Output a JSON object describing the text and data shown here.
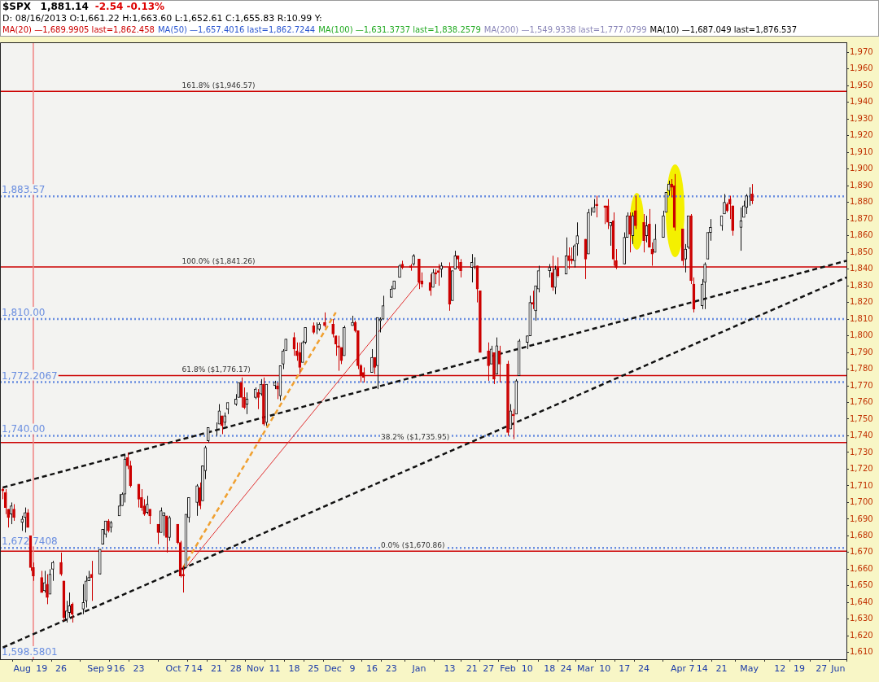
{
  "chart_data": {
    "type": "candlestick",
    "title": "$SPX",
    "subtitle": "D: 08/16/2013 O:1,661.22 H:1,663.60 L:1,652.61 C:1,655.83        R:10.99   Y:",
    "annotations": [
      "1,881.14",
      "-2.54  -0.13%",
      "MA(20) —1,689.9905 last=1,862.458",
      "MA(50) —1,657.4016 last=1,862.7244",
      "MA(100) —1,631.3737 last=1,838.2579",
      "MA(200) —1,549.9338 last=1,777.0799",
      "MA(10) —1,687.049 last=1,876.537",
      "1,598.5801"
    ],
    "x": [
      "2013-08-05",
      "2013-08-06",
      "2013-08-07",
      "2013-08-08",
      "2013-08-09",
      "2013-08-12",
      "2013-08-13",
      "2013-08-14",
      "2013-08-15",
      "2013-08-16",
      "2013-08-19",
      "2013-08-20",
      "2013-08-21",
      "2013-08-22",
      "2013-08-23",
      "2013-08-26",
      "2013-08-27",
      "2013-08-28",
      "2013-08-29",
      "2013-08-30",
      "2013-09-03",
      "2013-09-04",
      "2013-09-05",
      "2013-09-06",
      "2013-09-09",
      "2013-09-10",
      "2013-09-11",
      "2013-09-12",
      "2013-09-13",
      "2013-09-16",
      "2013-09-17",
      "2013-09-18",
      "2013-09-19",
      "2013-09-20",
      "2013-09-23",
      "2013-09-24",
      "2013-09-25",
      "2013-09-26",
      "2013-09-27",
      "2013-09-30",
      "2013-10-01",
      "2013-10-02",
      "2013-10-03",
      "2013-10-04",
      "2013-10-07",
      "2013-10-08",
      "2013-10-09",
      "2013-10-10",
      "2013-10-11",
      "2013-10-14",
      "2013-10-15",
      "2013-10-16",
      "2013-10-17",
      "2013-10-18",
      "2013-10-21",
      "2013-10-22",
      "2013-10-23",
      "2013-10-24",
      "2013-10-25",
      "2013-10-28",
      "2013-10-29",
      "2013-10-30",
      "2013-10-31",
      "2013-11-01",
      "2013-11-04",
      "2013-11-05",
      "2013-11-06",
      "2013-11-07",
      "2013-11-08",
      "2013-11-11",
      "2013-11-12",
      "2013-11-13",
      "2013-11-14",
      "2013-11-15",
      "2013-11-18",
      "2013-11-19",
      "2013-11-20",
      "2013-11-21",
      "2013-11-22",
      "2013-11-25",
      "2013-11-26",
      "2013-11-27",
      "2013-11-29",
      "2013-12-02",
      "2013-12-03",
      "2013-12-04",
      "2013-12-05",
      "2013-12-06",
      "2013-12-09",
      "2013-12-10",
      "2013-12-11",
      "2013-12-12",
      "2013-12-13",
      "2013-12-16",
      "2013-12-17",
      "2013-12-18",
      "2013-12-19",
      "2013-12-20",
      "2013-12-23",
      "2013-12-24",
      "2013-12-26",
      "2013-12-27",
      "2013-12-30",
      "2013-12-31",
      "2014-01-02",
      "2014-01-03",
      "2014-01-06",
      "2014-01-07",
      "2014-01-08",
      "2014-01-09",
      "2014-01-10",
      "2014-01-13",
      "2014-01-14",
      "2014-01-15",
      "2014-01-16",
      "2014-01-17",
      "2014-01-21",
      "2014-01-22",
      "2014-01-23",
      "2014-01-24",
      "2014-01-27",
      "2014-01-28",
      "2014-01-29",
      "2014-01-30",
      "2014-01-31",
      "2014-02-03",
      "2014-02-04",
      "2014-02-05",
      "2014-02-06",
      "2014-02-07",
      "2014-02-10",
      "2014-02-11",
      "2014-02-12",
      "2014-02-13",
      "2014-02-14",
      "2014-02-18",
      "2014-02-19",
      "2014-02-20",
      "2014-02-21",
      "2014-02-24",
      "2014-02-25",
      "2014-02-26",
      "2014-02-27",
      "2014-02-28",
      "2014-03-03",
      "2014-03-04",
      "2014-03-05",
      "2014-03-06",
      "2014-03-07",
      "2014-03-10",
      "2014-03-11",
      "2014-03-12",
      "2014-03-13",
      "2014-03-14",
      "2014-03-17",
      "2014-03-18",
      "2014-03-19",
      "2014-03-20",
      "2014-03-21",
      "2014-03-24",
      "2014-03-25",
      "2014-03-26",
      "2014-03-27",
      "2014-03-28",
      "2014-03-31",
      "2014-04-01",
      "2014-04-02",
      "2014-04-03",
      "2014-04-04",
      "2014-04-07",
      "2014-04-08",
      "2014-04-09",
      "2014-04-10",
      "2014-04-11",
      "2014-04-14",
      "2014-04-15",
      "2014-04-16",
      "2014-04-17",
      "2014-04-21",
      "2014-04-22",
      "2014-04-23",
      "2014-04-24",
      "2014-04-25",
      "2014-04-28",
      "2014-04-29",
      "2014-04-30",
      "2014-05-01",
      "2014-05-02"
    ],
    "ohlc": [
      [
        1708,
        1709,
        1702,
        1707
      ],
      [
        1706,
        1708,
        1693,
        1697
      ],
      [
        1696,
        1696,
        1685,
        1691
      ],
      [
        1693,
        1700,
        1687,
        1698
      ],
      [
        1696,
        1699,
        1689,
        1691
      ],
      [
        1688,
        1692,
        1683,
        1690
      ],
      [
        1691,
        1697,
        1682,
        1694
      ],
      [
        1694,
        1696,
        1685,
        1685
      ],
      [
        1680,
        1680,
        1659,
        1661
      ],
      [
        1661,
        1664,
        1653,
        1656
      ],
      [
        1655,
        1659,
        1646,
        1646
      ],
      [
        1647,
        1659,
        1646,
        1652
      ],
      [
        1651,
        1657,
        1639,
        1643
      ],
      [
        1645,
        1660,
        1645,
        1657
      ],
      [
        1660,
        1665,
        1653,
        1664
      ],
      [
        1664,
        1670,
        1656,
        1657
      ],
      [
        1653,
        1653,
        1629,
        1631
      ],
      [
        1630,
        1641,
        1628,
        1635
      ],
      [
        1634,
        1646,
        1631,
        1638
      ],
      [
        1639,
        1640,
        1628,
        1633
      ],
      [
        1636,
        1651,
        1633,
        1640
      ],
      [
        1641,
        1656,
        1637,
        1653
      ],
      [
        1653,
        1659,
        1653,
        1655
      ],
      [
        1657,
        1665,
        1641,
        1655
      ],
      [
        1657,
        1672,
        1657,
        1672
      ],
      [
        1675,
        1684,
        1675,
        1684
      ],
      [
        1681,
        1689,
        1679,
        1689
      ],
      [
        1689,
        1690,
        1682,
        1683
      ],
      [
        1685,
        1689,
        1682,
        1688
      ],
      [
        1692,
        1705,
        1692,
        1698
      ],
      [
        1698,
        1706,
        1698,
        1705
      ],
      [
        1705,
        1729,
        1700,
        1726
      ],
      [
        1727,
        1730,
        1720,
        1722
      ],
      [
        1722,
        1725,
        1709,
        1710
      ],
      [
        1711,
        1711,
        1697,
        1702
      ],
      [
        1703,
        1708,
        1695,
        1697
      ],
      [
        1698,
        1702,
        1692,
        1693
      ],
      [
        1694,
        1704,
        1693,
        1699
      ],
      [
        1696,
        1696,
        1687,
        1692
      ],
      [
        1687,
        1687,
        1675,
        1682
      ],
      [
        1682,
        1697,
        1682,
        1695
      ],
      [
        1692,
        1694,
        1680,
        1694
      ],
      [
        1692,
        1692,
        1670,
        1679
      ],
      [
        1679,
        1692,
        1677,
        1691
      ],
      [
        1687,
        1687,
        1675,
        1676
      ],
      [
        1676,
        1677,
        1655,
        1656
      ],
      [
        1657,
        1662,
        1646,
        1656
      ],
      [
        1661,
        1693,
        1661,
        1693
      ],
      [
        1691,
        1703,
        1688,
        1703
      ],
      [
        1700,
        1711,
        1692,
        1710
      ],
      [
        1709,
        1712,
        1696,
        1698
      ],
      [
        1701,
        1722,
        1701,
        1722
      ],
      [
        1719,
        1734,
        1714,
        1733
      ],
      [
        1737,
        1745,
        1736,
        1745
      ],
      [
        1745,
        1748,
        1740,
        1745
      ],
      [
        1747,
        1759,
        1747,
        1755
      ],
      [
        1752,
        1752,
        1741,
        1746
      ],
      [
        1748,
        1754,
        1746,
        1752
      ],
      [
        1756,
        1760,
        1753,
        1760
      ],
      [
        1759,
        1765,
        1758,
        1762
      ],
      [
        1763,
        1772,
        1763,
        1772
      ],
      [
        1772,
        1775,
        1757,
        1763
      ],
      [
        1763,
        1769,
        1756,
        1757
      ],
      [
        1759,
        1766,
        1753,
        1762
      ],
      [
        1763,
        1769,
        1762,
        1768
      ],
      [
        1766,
        1768,
        1756,
        1763
      ],
      [
        1765,
        1774,
        1764,
        1771
      ],
      [
        1771,
        1775,
        1746,
        1747
      ],
      [
        1748,
        1771,
        1746,
        1771
      ],
      [
        1770,
        1773,
        1768,
        1772
      ],
      [
        1770,
        1772,
        1762,
        1768
      ],
      [
        1764,
        1782,
        1761,
        1782
      ],
      [
        1783,
        1792,
        1780,
        1791
      ],
      [
        1791,
        1798,
        1791,
        1798
      ],
      [
        1799,
        1802,
        1788,
        1792
      ],
      [
        1791,
        1796,
        1785,
        1788
      ],
      [
        1790,
        1796,
        1777,
        1781
      ],
      [
        1784,
        1797,
        1784,
        1796
      ],
      [
        1796,
        1805,
        1795,
        1805
      ],
      [
        1806,
        1808,
        1801,
        1802
      ],
      [
        1803,
        1808,
        1801,
        1803
      ],
      [
        1804,
        1808,
        1803,
        1807
      ],
      [
        1808,
        1814,
        1805,
        1806
      ],
      [
        1807,
        1810,
        1799,
        1801
      ],
      [
        1800,
        1800,
        1788,
        1795
      ],
      [
        1794,
        1800,
        1779,
        1793
      ],
      [
        1793,
        1793,
        1783,
        1785
      ],
      [
        1788,
        1806,
        1788,
        1805
      ],
      [
        1806,
        1812,
        1806,
        1808
      ],
      [
        1808,
        1809,
        1802,
        1803
      ],
      [
        1803,
        1803,
        1780,
        1782
      ],
      [
        1782,
        1783,
        1772,
        1776
      ],
      [
        1778,
        1781,
        1772,
        1775
      ],
      [
        1778,
        1792,
        1778,
        1787
      ],
      [
        1787,
        1787,
        1777,
        1781
      ],
      [
        1782,
        1811,
        1768,
        1811
      ],
      [
        1809,
        1811,
        1802,
        1810
      ],
      [
        1810,
        1824,
        1810,
        1818
      ],
      [
        1823,
        1830,
        1823,
        1828
      ],
      [
        1828,
        1833,
        1828,
        1833
      ],
      [
        1835,
        1843,
        1835,
        1842
      ],
      [
        1843,
        1845,
        1840,
        1841
      ],
      [
        1842,
        1843,
        1839,
        1841
      ],
      [
        1843,
        1849,
        1842,
        1848
      ],
      [
        1846,
        1846,
        1828,
        1832
      ],
      [
        1833,
        1838,
        1829,
        1831
      ],
      [
        1832,
        1837,
        1824,
        1827
      ],
      [
        1829,
        1840,
        1829,
        1838
      ],
      [
        1838,
        1840,
        1831,
        1837
      ],
      [
        1839,
        1843,
        1830,
        1838
      ],
      [
        1840,
        1844,
        1835,
        1842
      ],
      [
        1841,
        1844,
        1815,
        1819
      ],
      [
        1821,
        1839,
        1821,
        1839
      ],
      [
        1840,
        1851,
        1840,
        1848
      ],
      [
        1848,
        1848,
        1840,
        1846
      ],
      [
        1844,
        1846,
        1835,
        1839
      ],
      [
        1841,
        1849,
        1832,
        1844
      ],
      [
        1845,
        1847,
        1840,
        1845
      ],
      [
        1842,
        1842,
        1820,
        1828
      ],
      [
        1827,
        1827,
        1790,
        1790
      ],
      [
        1791,
        1796,
        1773,
        1782
      ],
      [
        1783,
        1794,
        1783,
        1792
      ],
      [
        1790,
        1790,
        1771,
        1774
      ],
      [
        1777,
        1799,
        1777,
        1794
      ],
      [
        1791,
        1794,
        1772,
        1783
      ],
      [
        1783,
        1785,
        1740,
        1742
      ],
      [
        1744,
        1759,
        1744,
        1755
      ],
      [
        1753,
        1756,
        1738,
        1752
      ],
      [
        1753,
        1774,
        1753,
        1773
      ],
      [
        1776,
        1798,
        1776,
        1797
      ],
      [
        1796,
        1800,
        1792,
        1800
      ],
      [
        1800,
        1824,
        1800,
        1820
      ],
      [
        1820,
        1827,
        1816,
        1819
      ],
      [
        1815,
        1830,
        1809,
        1830
      ],
      [
        1828,
        1842,
        1826,
        1839
      ],
      [
        1839,
        1843,
        1835,
        1841
      ],
      [
        1838,
        1848,
        1827,
        1829
      ],
      [
        1829,
        1842,
        1825,
        1840
      ],
      [
        1841,
        1847,
        1835,
        1836
      ],
      [
        1837,
        1859,
        1837,
        1848
      ],
      [
        1848,
        1853,
        1840,
        1845
      ],
      [
        1846,
        1853,
        1843,
        1845
      ],
      [
        1845,
        1855,
        1841,
        1854
      ],
      [
        1855,
        1868,
        1848,
        1860
      ],
      [
        1858,
        1858,
        1834,
        1846
      ],
      [
        1849,
        1876,
        1849,
        1874
      ],
      [
        1874,
        1877,
        1872,
        1874
      ],
      [
        1874,
        1882,
        1874,
        1877
      ],
      [
        1879,
        1884,
        1871,
        1878
      ],
      [
        1878,
        1878,
        1867,
        1877
      ],
      [
        1878,
        1882,
        1864,
        1868
      ],
      [
        1866,
        1868,
        1854,
        1868
      ],
      [
        1869,
        1874,
        1842,
        1846
      ],
      [
        1845,
        1852,
        1840,
        1841
      ],
      [
        1843,
        1862,
        1843,
        1859
      ],
      [
        1859,
        1874,
        1859,
        1872
      ],
      [
        1872,
        1874,
        1850,
        1861
      ],
      [
        1860,
        1874,
        1855,
        1872
      ],
      [
        1875,
        1884,
        1864,
        1866
      ],
      [
        1868,
        1873,
        1850,
        1857
      ],
      [
        1860,
        1872,
        1856,
        1866
      ],
      [
        1867,
        1876,
        1853,
        1853
      ],
      [
        1852,
        1856,
        1842,
        1849
      ],
      [
        1850,
        1867,
        1850,
        1858
      ],
      [
        1859,
        1875,
        1859,
        1872
      ],
      [
        1874,
        1886,
        1874,
        1886
      ],
      [
        1887,
        1893,
        1884,
        1891
      ],
      [
        1891,
        1894,
        1883,
        1889
      ],
      [
        1890,
        1897,
        1863,
        1865
      ],
      [
        1864,
        1864,
        1842,
        1845
      ],
      [
        1846,
        1855,
        1838,
        1852
      ],
      [
        1853,
        1872,
        1852,
        1872
      ],
      [
        1872,
        1873,
        1831,
        1833
      ],
      [
        1831,
        1835,
        1814,
        1816
      ],
      [
        1818,
        1834,
        1816,
        1831
      ],
      [
        1832,
        1844,
        1816,
        1843
      ],
      [
        1846,
        1862,
        1846,
        1862
      ],
      [
        1862,
        1870,
        1857,
        1865
      ],
      [
        1866,
        1872,
        1863,
        1872
      ],
      [
        1873,
        1885,
        1873,
        1880
      ],
      [
        1879,
        1880,
        1874,
        1875
      ],
      [
        1882,
        1884,
        1870,
        1879
      ],
      [
        1878,
        1878,
        1860,
        1863
      ],
      [
        1865,
        1877,
        1851,
        1869
      ],
      [
        1871,
        1881,
        1871,
        1878
      ],
      [
        1877,
        1885,
        1873,
        1884
      ],
      [
        1884,
        1889,
        1878,
        1884
      ],
      [
        1885,
        1891,
        1879,
        1881
      ]
    ],
    "series": [
      {
        "type": "line",
        "color": "#111111",
        "line_style": "dashed",
        "x": [
          "2013-08-05",
          "2014-06-05"
        ],
        "values": [
          1709,
          1845
        ]
      },
      {
        "type": "line",
        "color": "#111111",
        "line_style": "dashed",
        "x": [
          "2013-08-05",
          "2014-06-05"
        ],
        "values": [
          1613,
          1835
        ]
      },
      {
        "type": "line",
        "color": "#f0a030",
        "line_style": "dashed",
        "x": [
          "2013-10-09",
          "2013-12-03"
        ],
        "values": [
          1661,
          1814
        ]
      },
      {
        "type": "line",
        "color": "#e03030",
        "line_style": "solid",
        "x": [
          "2013-10-09",
          "2014-01-02"
        ],
        "values": [
          1659,
          1832
        ]
      }
    ],
    "ref_lines": [
      {
        "axis": "y",
        "value": 1946.57,
        "label": "161.8% ($1,946.57)",
        "color": "#cc0000",
        "line_style": "solid"
      },
      {
        "axis": "y",
        "value": 1841.26,
        "label": "100.0% ($1,841.26)",
        "color": "#cc0000",
        "line_style": "solid"
      },
      {
        "axis": "y",
        "value": 1776.17,
        "label": "61.8% ($1,776.17)",
        "color": "#cc0000",
        "line_style": "solid"
      },
      {
        "axis": "y",
        "value": 1735.95,
        "label": "38.2% ($1,735.95)",
        "color": "#cc0000",
        "line_style": "solid"
      },
      {
        "axis": "y",
        "value": 1670.86,
        "label": "0.0% ($1,670.86)",
        "color": "#cc0000",
        "line_style": "solid"
      },
      {
        "axis": "y",
        "value": 1883.57,
        "label": "1,883.57",
        "color": "#6a8ee0",
        "line_style": "dotted"
      },
      {
        "axis": "y",
        "value": 1810,
        "label": "1,810.00",
        "color": "#6a8ee0",
        "line_style": "dotted"
      },
      {
        "axis": "y",
        "value": 1772.2067,
        "label": "1,772.2067",
        "color": "#6a8ee0",
        "line_style": "dotted"
      },
      {
        "axis": "y",
        "value": 1740,
        "label": "1,740.00",
        "color": "#6a8ee0",
        "line_style": "dotted"
      },
      {
        "axis": "y",
        "value": 1672.7408,
        "label": "1,672.7408",
        "color": "#6a8ee0",
        "line_style": "dotted"
      },
      {
        "axis": "x",
        "value": "2013-08-16",
        "color": "#f08080",
        "line_style": "solid"
      }
    ],
    "xlim": [
      "2013-08-04",
      "2014-06-05"
    ],
    "xticks": [
      {
        "value": "2013-08-12",
        "label": "Aug"
      },
      {
        "value": "2013-08-19",
        "label": "19"
      },
      {
        "value": "2013-08-26",
        "label": "26"
      },
      {
        "value": "2013-09-09",
        "label": "Sep 9"
      },
      {
        "value": "2013-09-16",
        "label": "16"
      },
      {
        "value": "2013-09-23",
        "label": "23"
      },
      {
        "value": "2013-10-07",
        "label": "Oct 7"
      },
      {
        "value": "2013-10-14",
        "label": "14"
      },
      {
        "value": "2013-10-21",
        "label": "21"
      },
      {
        "value": "2013-10-28",
        "label": "28"
      },
      {
        "value": "2013-11-04",
        "label": "Nov"
      },
      {
        "value": "2013-11-11",
        "label": "11"
      },
      {
        "value": "2013-11-18",
        "label": "18"
      },
      {
        "value": "2013-11-25",
        "label": "25"
      },
      {
        "value": "2013-12-02",
        "label": "Dec"
      },
      {
        "value": "2013-12-09",
        "label": "9"
      },
      {
        "value": "2013-12-16",
        "label": "16"
      },
      {
        "value": "2013-12-23",
        "label": "23"
      },
      {
        "value": "2014-01-02",
        "label": "Jan"
      },
      {
        "value": "2014-01-13",
        "label": "13"
      },
      {
        "value": "2014-01-21",
        "label": "21"
      },
      {
        "value": "2014-01-27",
        "label": "27"
      },
      {
        "value": "2014-02-03",
        "label": "Feb"
      },
      {
        "value": "2014-02-10",
        "label": "10"
      },
      {
        "value": "2014-02-18",
        "label": "18"
      },
      {
        "value": "2014-02-24",
        "label": "24"
      },
      {
        "value": "2014-03-03",
        "label": "Mar"
      },
      {
        "value": "2014-03-10",
        "label": "10"
      },
      {
        "value": "2014-03-17",
        "label": "17"
      },
      {
        "value": "2014-03-24",
        "label": "24"
      },
      {
        "value": "2014-04-07",
        "label": "Apr 7"
      },
      {
        "value": "2014-04-14",
        "label": "14"
      },
      {
        "value": "2014-04-21",
        "label": "21"
      },
      {
        "value": "2014-05-01",
        "label": "May"
      },
      {
        "value": "2014-05-12",
        "label": "12"
      },
      {
        "value": "2014-05-19",
        "label": "19"
      },
      {
        "value": "2014-05-27",
        "label": "27"
      },
      {
        "value": "2014-06-02",
        "label": "Jun"
      }
    ],
    "ylim": [
      1606,
      1976
    ],
    "yticks": [
      {
        "value": 1610,
        "label": "1,610"
      },
      {
        "value": 1620,
        "label": "1,620"
      },
      {
        "value": 1630,
        "label": "1,630"
      },
      {
        "value": 1640,
        "label": "1,640"
      },
      {
        "value": 1650,
        "label": "1,650"
      },
      {
        "value": 1660,
        "label": "1,660"
      },
      {
        "value": 1670,
        "label": "1,670"
      },
      {
        "value": 1680,
        "label": "1,680"
      },
      {
        "value": 1690,
        "label": "1,690"
      },
      {
        "value": 1700,
        "label": "1,700"
      },
      {
        "value": 1710,
        "label": "1,710"
      },
      {
        "value": 1720,
        "label": "1,720"
      },
      {
        "value": 1730,
        "label": "1,730"
      },
      {
        "value": 1740,
        "label": "1,740"
      },
      {
        "value": 1750,
        "label": "1,750"
      },
      {
        "value": 1760,
        "label": "1,760"
      },
      {
        "value": 1770,
        "label": "1,770"
      },
      {
        "value": 1780,
        "label": "1,780"
      },
      {
        "value": 1790,
        "label": "1,790"
      },
      {
        "value": 1800,
        "label": "1,800"
      },
      {
        "value": 1810,
        "label": "1,810"
      },
      {
        "value": 1820,
        "label": "1,820"
      },
      {
        "value": 1830,
        "label": "1,830"
      },
      {
        "value": 1840,
        "label": "1,840"
      },
      {
        "value": 1850,
        "label": "1,850"
      },
      {
        "value": 1860,
        "label": "1,860"
      },
      {
        "value": 1870,
        "label": "1,870"
      },
      {
        "value": 1880,
        "label": "1,880"
      },
      {
        "value": 1890,
        "label": "1,890"
      },
      {
        "value": 1900,
        "label": "1,900"
      },
      {
        "value": 1910,
        "label": "1,910"
      },
      {
        "value": 1920,
        "label": "1,920"
      },
      {
        "value": 1930,
        "label": "1,930"
      },
      {
        "value": 1940,
        "label": "1,940"
      },
      {
        "value": 1950,
        "label": "1,950"
      },
      {
        "value": 1960,
        "label": "1,960"
      },
      {
        "value": 1970,
        "label": "1,970"
      }
    ]
  }
}
